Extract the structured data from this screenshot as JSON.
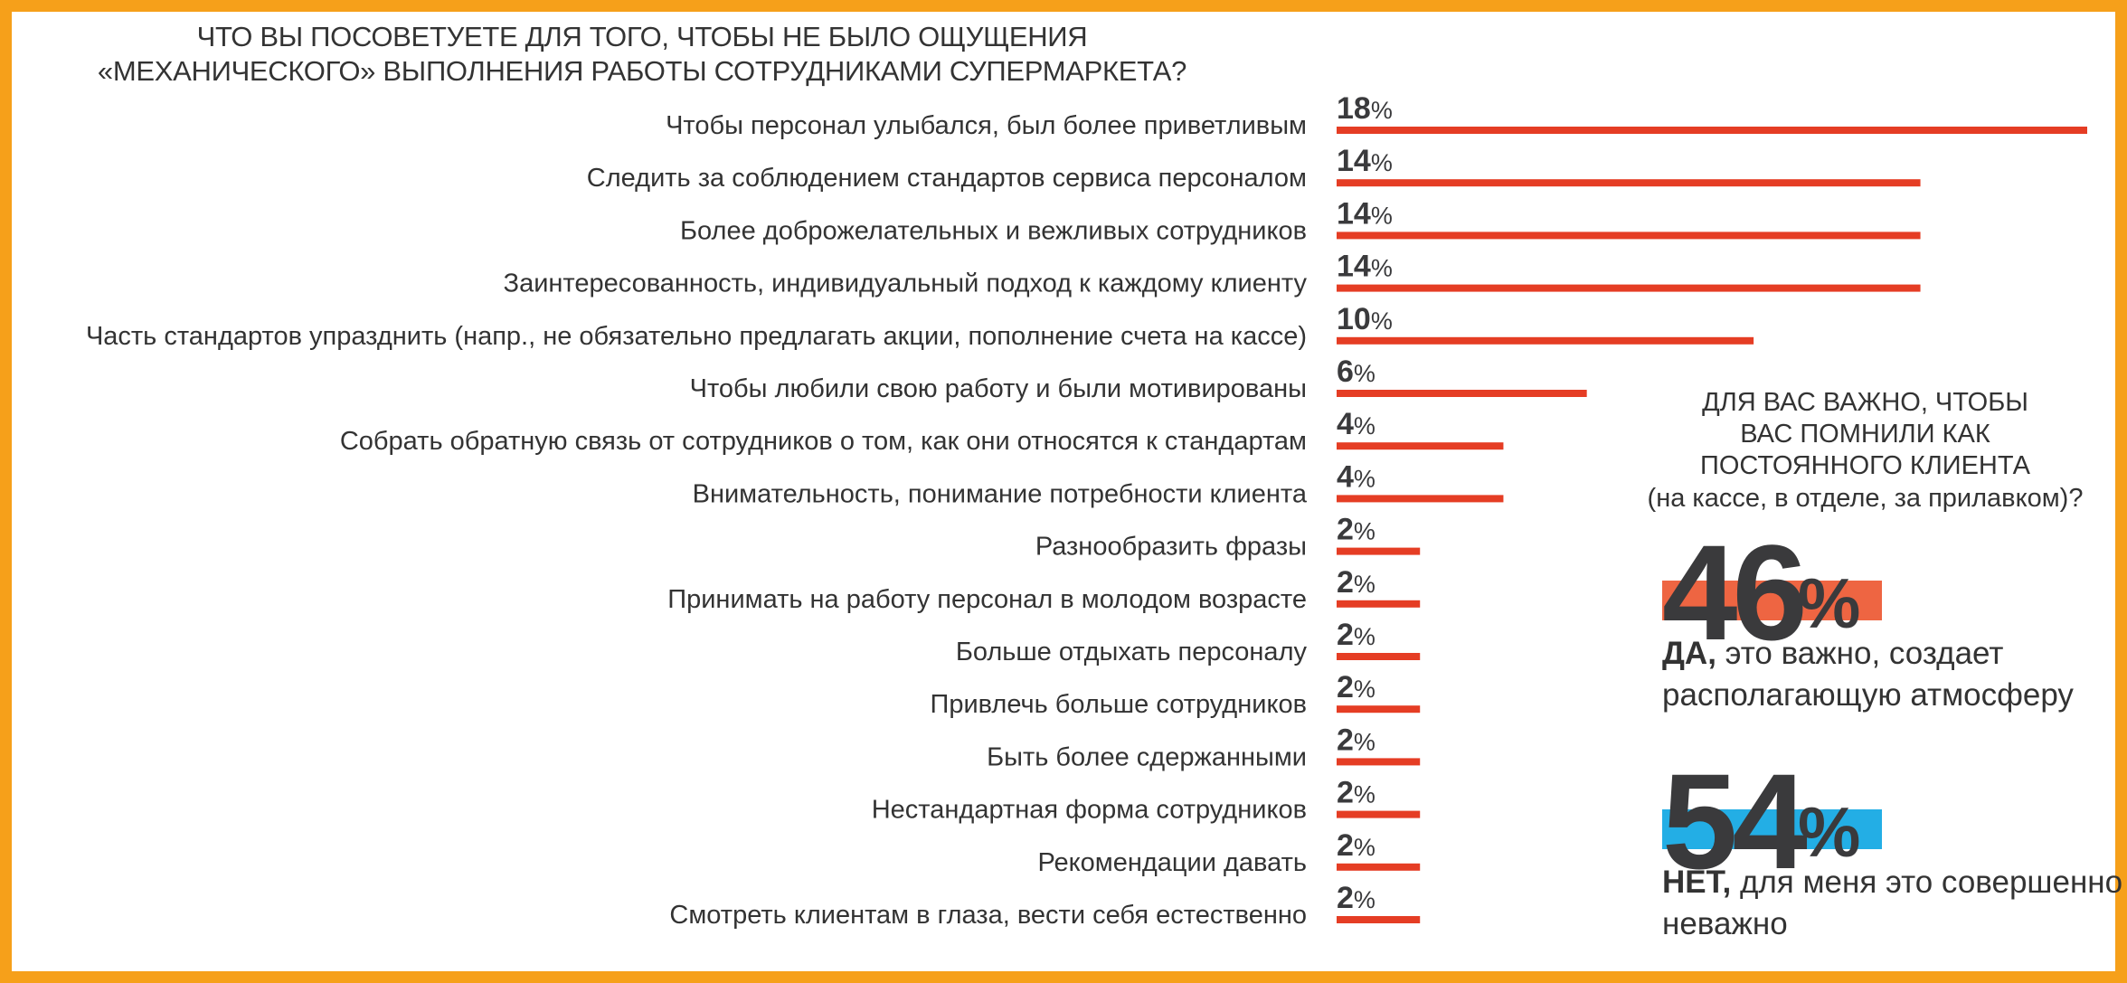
{
  "title": "ЧТО ВЫ ПОСОВЕТУЕТЕ ДЛЯ ТОГО, ЧТОБЫ НЕ БЫЛО ОЩУЩЕНИЯ\n«МЕХАНИЧЕСКОГО» ВЫПОЛНЕНИЯ РАБОТЫ СОТРУДНИКАМИ СУПЕРМАРКЕТА?",
  "colors": {
    "frame": "#f6a01a",
    "bar": "#e53d24",
    "yes_band": "#ee6542",
    "no_band": "#23aee5",
    "text": "#333333"
  },
  "chart_data": {
    "type": "bar",
    "orientation": "horizontal",
    "unit": "%",
    "categories": [
      "Чтобы персонал улыбался, был более приветливым",
      "Следить за соблюдением стандартов сервиса персоналом",
      "Более доброжелательных и вежливых сотрудников",
      "Заинтересованность, индивидуальный подход к каждому клиенту",
      "Часть стандартов упразднить (напр., не обязательно предлагать акции, пополнение счета на кассе)",
      "Чтобы любили свою работу и были мотивированы",
      "Собрать обратную связь от сотрудников о том, как они относятся к стандартам",
      "Внимательность, понимание потребности клиента",
      "Разнообразить фразы",
      "Принимать на работу персонал в молодом возрасте",
      "Больше отдыхать персоналу",
      "Привлечь больше сотрудников",
      "Быть более сдержанными",
      "Нестандартная форма сотрудников",
      "Рекомендации давать",
      "Смотреть клиентам в глаза, вести себя естественно"
    ],
    "values": [
      18,
      14,
      14,
      14,
      10,
      6,
      4,
      4,
      2,
      2,
      2,
      2,
      2,
      2,
      2,
      2
    ],
    "xlim": [
      0,
      18
    ],
    "grid": false,
    "legend": "none"
  },
  "side": {
    "question": "ДЛЯ ВАС ВАЖНО, ЧТОБЫ\nВАС ПОМНИЛИ КАК\nПОСТОЯННОГО КЛИЕНТА",
    "note": "(на кассе, в отделе, за прилавком)?",
    "yes_value": "46",
    "yes_pct": "%",
    "yes_label": "ДА,",
    "yes_text": " это важно, создает располагающую атмосферу",
    "no_value": "54",
    "no_pct": "%",
    "no_label": "НЕТ,",
    "no_text": " для меня это совершенно неважно"
  }
}
